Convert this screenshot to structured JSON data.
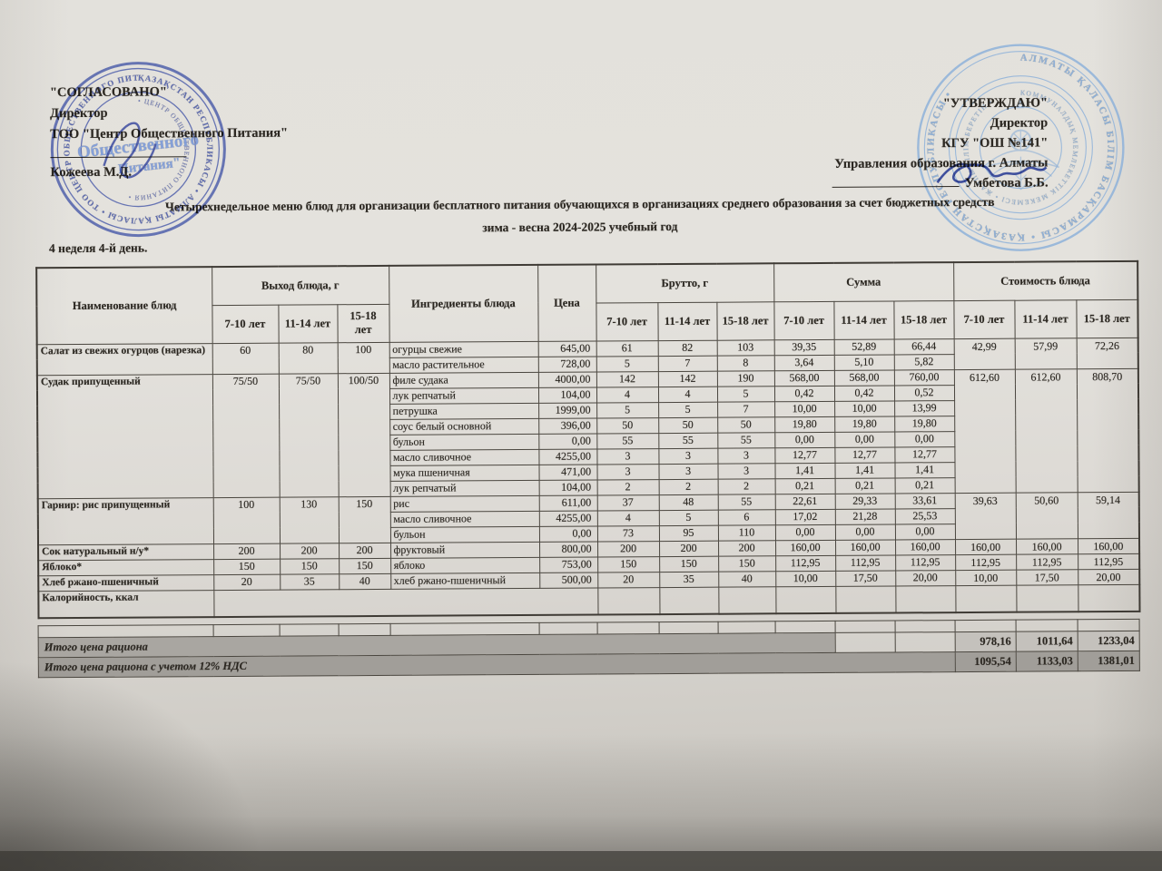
{
  "colors": {
    "stamp_left_blue": "#3d4fa5",
    "stamp_right_blue": "#8fb2da",
    "totals_band_gray": "#a9a6a1",
    "signature_blue": "#2e4096"
  },
  "approvals": {
    "left": {
      "title": "\"СОГЛАСОВАНО\"",
      "line1": "Директор",
      "line2": "ТОО \"Центр Общественного Питания\"",
      "name": "Кожеева М.Д."
    },
    "right": {
      "title": "\"УТВЕРЖДАЮ\"",
      "line1": "Директор",
      "line2": "КГУ \"ОШ №141\"",
      "line3": "Управления образования г. Алматы",
      "name": "Умбетова Б.Б."
    }
  },
  "stamps": {
    "left": {
      "ring1": "ҚАЗАҚСТАН РЕСПУБЛИКАСЫ • АЛМАТЫ ҚАЛАСЫ • ТОО ЦЕНТР ОБЩЕСТВЕННОГО ПИТАНИЯ •",
      "ring2": "• ЦЕНТР ОБЩЕСТВЕННОГО ПИТАНИЯ •",
      "center1": "Общественного",
      "center2": "Питания\""
    },
    "right": {
      "ring1": "АЛМАТЫ ҚАЛАСЫ БІЛІМ БАСҚАРМАСЫ • ҚАЗАҚСТАН РЕСПУБЛИКАСЫ •",
      "ring2": "КОММУНАЛДЫҚ МЕМЛЕКЕТТІК МЕКЕМЕСІ • ЖАЛПЫ БІЛІМ БЕРЕТІН •"
    }
  },
  "title": {
    "line1": "Четырехнедельное меню блюд для организации бесплатного питания обучающихся в организациях среднего образования за счет бюджетных средств",
    "line2": "зима - весна 2024-2025 учебный год",
    "week_day": "4 неделя 4-й день."
  },
  "table": {
    "headers": {
      "name": "Наименование блюд",
      "output": "Выход блюда, г",
      "ingredients": "Ингредиенты блюда",
      "price": "Цена",
      "brutto": "Брутто, г",
      "sum": "Сумма",
      "cost": "Стоимость блюда",
      "ages": [
        "7-10 лет",
        "11-14 лет",
        "15-18 лет"
      ]
    },
    "dishes": [
      {
        "name": "Салат из свежих огурцов (нарезка)",
        "out": [
          "60",
          "80",
          "100"
        ],
        "cost": [
          "42,99",
          "57,99",
          "72,26"
        ],
        "ingredients": [
          {
            "name": "огурцы свежие",
            "price": "645,00",
            "brutto": [
              "61",
              "82",
              "103"
            ],
            "sum": [
              "39,35",
              "52,89",
              "66,44"
            ]
          },
          {
            "name": "масло растительное",
            "price": "728,00",
            "brutto": [
              "5",
              "7",
              "8"
            ],
            "sum": [
              "3,64",
              "5,10",
              "5,82"
            ]
          }
        ]
      },
      {
        "name": "Судак припущенный",
        "out": [
          "75/50",
          "75/50",
          "100/50"
        ],
        "cost": [
          "612,60",
          "612,60",
          "808,70"
        ],
        "ingredients": [
          {
            "name": "филе судака",
            "price": "4000,00",
            "brutto": [
              "142",
              "142",
              "190"
            ],
            "sum": [
              "568,00",
              "568,00",
              "760,00"
            ]
          },
          {
            "name": "лук репчатый",
            "price": "104,00",
            "brutto": [
              "4",
              "4",
              "5"
            ],
            "sum": [
              "0,42",
              "0,42",
              "0,52"
            ]
          },
          {
            "name": "петрушка",
            "price": "1999,00",
            "brutto": [
              "5",
              "5",
              "7"
            ],
            "sum": [
              "10,00",
              "10,00",
              "13,99"
            ]
          },
          {
            "name": "соус белый основной",
            "price": "396,00",
            "brutto": [
              "50",
              "50",
              "50"
            ],
            "sum": [
              "19,80",
              "19,80",
              "19,80"
            ]
          },
          {
            "name": "бульон",
            "price": "0,00",
            "brutto": [
              "55",
              "55",
              "55"
            ],
            "sum": [
              "0,00",
              "0,00",
              "0,00"
            ]
          },
          {
            "name": "масло сливочное",
            "price": "4255,00",
            "brutto": [
              "3",
              "3",
              "3"
            ],
            "sum": [
              "12,77",
              "12,77",
              "12,77"
            ]
          },
          {
            "name": "мука пшеничная",
            "price": "471,00",
            "brutto": [
              "3",
              "3",
              "3"
            ],
            "sum": [
              "1,41",
              "1,41",
              "1,41"
            ]
          },
          {
            "name": "лук репчатый",
            "price": "104,00",
            "brutto": [
              "2",
              "2",
              "2"
            ],
            "sum": [
              "0,21",
              "0,21",
              "0,21"
            ]
          }
        ]
      },
      {
        "name": "Гарнир: рис припущенный",
        "out": [
          "100",
          "130",
          "150"
        ],
        "cost": [
          "39,63",
          "50,60",
          "59,14"
        ],
        "ingredients": [
          {
            "name": "рис",
            "price": "611,00",
            "brutto": [
              "37",
              "48",
              "55"
            ],
            "sum": [
              "22,61",
              "29,33",
              "33,61"
            ]
          },
          {
            "name": "масло сливочное",
            "price": "4255,00",
            "brutto": [
              "4",
              "5",
              "6"
            ],
            "sum": [
              "17,02",
              "21,28",
              "25,53"
            ]
          },
          {
            "name": "бульон",
            "price": "0,00",
            "brutto": [
              "73",
              "95",
              "110"
            ],
            "sum": [
              "0,00",
              "0,00",
              "0,00"
            ]
          }
        ]
      },
      {
        "name": "Сок натуральный н/у*",
        "out": [
          "200",
          "200",
          "200"
        ],
        "cost": [
          "160,00",
          "160,00",
          "160,00"
        ],
        "ingredients": [
          {
            "name": "фруктовый",
            "price": "800,00",
            "brutto": [
              "200",
              "200",
              "200"
            ],
            "sum": [
              "160,00",
              "160,00",
              "160,00"
            ]
          }
        ]
      },
      {
        "name": "Яблоко*",
        "out": [
          "150",
          "150",
          "150"
        ],
        "cost": [
          "112,95",
          "112,95",
          "112,95"
        ],
        "ingredients": [
          {
            "name": "яблоко",
            "price": "753,00",
            "brutto": [
              "150",
              "150",
              "150"
            ],
            "sum": [
              "112,95",
              "112,95",
              "112,95"
            ]
          }
        ]
      },
      {
        "name": "Хлеб ржано-пшеничный",
        "out": [
          "20",
          "35",
          "40"
        ],
        "cost": [
          "10,00",
          "17,50",
          "20,00"
        ],
        "ingredients": [
          {
            "name": "хлеб ржано-пшеничный",
            "price": "500,00",
            "brutto": [
              "20",
              "35",
              "40"
            ],
            "sum": [
              "10,00",
              "17,50",
              "20,00"
            ]
          }
        ]
      }
    ],
    "kcal_label": "Калорийность, ккал",
    "totals": [
      {
        "label": "Итого цена рациона",
        "values": [
          "978,16",
          "1011,64",
          "1233,04"
        ]
      },
      {
        "label": "Итого цена рациона с учетом 12% НДС",
        "values": [
          "1095,54",
          "1133,03",
          "1381,01"
        ]
      }
    ]
  }
}
